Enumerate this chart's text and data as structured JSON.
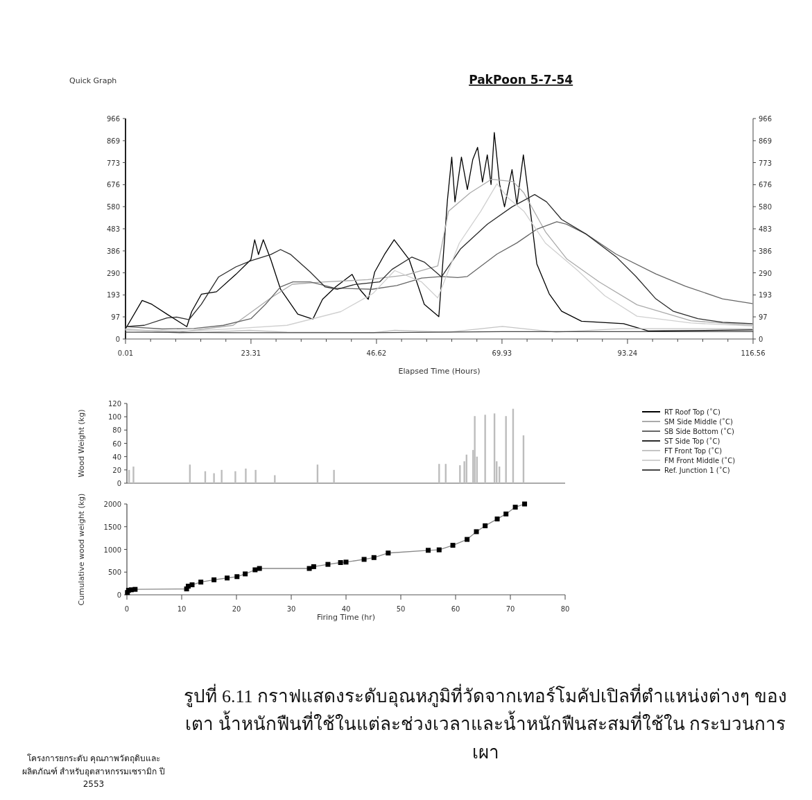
{
  "chart_data": [
    {
      "type": "line",
      "title": "PakPoon 5-7-54",
      "xlabel": "Elapsed Time (Hours)",
      "annotations": [
        "Quick Graph"
      ],
      "xlim": [
        0.01,
        116.56
      ],
      "xticks": [
        0.01,
        {
          "value": 4.67,
          "label": null
        },
        {
          "value": 9.33,
          "label": null
        },
        {
          "value": 13.99,
          "label": null
        },
        {
          "value": 18.65,
          "label": null
        },
        23.31,
        {
          "value": 27.97,
          "label": null
        },
        {
          "value": 32.63,
          "label": null
        },
        {
          "value": 37.29,
          "label": null
        },
        {
          "value": 41.96,
          "label": null
        },
        46.62,
        {
          "value": 51.28,
          "label": null
        },
        {
          "value": 55.94,
          "label": null
        },
        {
          "value": 60.6,
          "label": null
        },
        {
          "value": 65.27,
          "label": null
        },
        69.93,
        {
          "value": 74.59,
          "label": null
        },
        {
          "value": 79.25,
          "label": null
        },
        {
          "value": 83.91,
          "label": null
        },
        {
          "value": 88.58,
          "label": null
        },
        93.24,
        {
          "value": 97.9,
          "label": null
        },
        {
          "value": 102.56,
          "label": null
        },
        {
          "value": 107.22,
          "label": null
        },
        {
          "value": 111.89,
          "label": null
        },
        116.56
      ],
      "ylim": [
        0,
        966
      ],
      "yticks": [
        0,
        97,
        193,
        290,
        386,
        483,
        580,
        676,
        773,
        869,
        966
      ],
      "y2lim": [
        0,
        966
      ],
      "y2ticks": [
        0,
        97,
        193,
        290,
        386,
        483,
        580,
        676,
        773,
        869,
        966
      ],
      "legend": "bottom right",
      "line_style": "solid",
      "grid": false,
      "series": [
        {
          "name": "RT Roof Top (˚C)",
          "color": "#000000",
          "x": [
            0.01,
            3.1,
            4.9,
            7.7,
            11.4,
            12.3,
            14.1,
            16.9,
            20.5,
            23.3,
            24,
            24.7,
            25.6,
            27,
            28.8,
            32,
            34.8,
            36.6,
            39,
            42.1,
            43.5,
            45.1,
            46.3,
            48.1,
            49.9,
            52.7,
            55.5,
            58.2,
            59.8,
            60.6,
            61.2,
            62.4,
            63.5,
            64.5,
            65.4,
            66.3,
            67.2,
            67.9,
            68.5,
            69.5,
            70.4,
            71.8,
            72.7,
            73.9,
            75,
            76.4,
            78.7,
            81,
            84.7,
            92.5,
            97.1,
            116.4
          ],
          "values": [
            44,
            169,
            152,
            109,
            54,
            120,
            196,
            207,
            283,
            348,
            435,
            370,
            435,
            348,
            218,
            109,
            87,
            174,
            228,
            283,
            218,
            174,
            294,
            370,
            435,
            348,
            152,
            98,
            609,
            797,
            601,
            797,
            655,
            786,
            840,
            688,
            807,
            677,
            905,
            677,
            579,
            742,
            590,
            807,
            601,
            329,
            198,
            122,
            78,
            67,
            35,
            40
          ]
        },
        {
          "name": "SM Side Middle (˚C)",
          "color": "#aaaaaa",
          "x": [
            0.01,
            10,
            20,
            27,
            31,
            37,
            45,
            52,
            58,
            60,
            64,
            68,
            72,
            74,
            78,
            82,
            88,
            95,
            105,
            116.5
          ],
          "values": [
            40,
            30,
            60,
            180,
            240,
            250,
            260,
            280,
            320,
            560,
            640,
            700,
            690,
            640,
            470,
            350,
            250,
            150,
            80,
            60
          ]
        },
        {
          "name": "SB Side Bottom (˚C)",
          "color": "#666666",
          "x": [
            0.01,
            6.8,
            12.7,
            18.2,
            23.3,
            26,
            28.8,
            31.1,
            34.3,
            38.9,
            45.8,
            50.4,
            55,
            58.7,
            61.7,
            63.5,
            69,
            72.7,
            76.4,
            80.1,
            81.9,
            85.6,
            91.1,
            98.5,
            104,
            110.9,
            116.4
          ],
          "values": [
            54,
            44,
            46,
            60,
            89,
            152,
            228,
            250,
            250,
            223,
            218,
            234,
            267,
            274,
            269,
            274,
            372,
            421,
            481,
            514,
            503,
            459,
            372,
            285,
            231,
            176,
            155
          ]
        },
        {
          "name": "ST Side Top (˚C)",
          "color": "#2a2a2a",
          "x": [
            0.01,
            3.5,
            7.7,
            9.5,
            11.8,
            14.1,
            17.3,
            20.5,
            23.3,
            27,
            28.8,
            30.7,
            34.3,
            37.1,
            39.4,
            42.6,
            47.2,
            49.5,
            53.2,
            55.5,
            58.7,
            62.2,
            67.2,
            71.8,
            76,
            78.2,
            81,
            85.6,
            91.1,
            94.8,
            98.5,
            101.7,
            106.3,
            110.9,
            116.4
          ],
          "values": [
            54,
            60,
            92,
            96,
            85,
            152,
            272,
            316,
            343,
            370,
            392,
            370,
            294,
            228,
            218,
            239,
            250,
            305,
            359,
            337,
            272,
            394,
            503,
            579,
            633,
            601,
            524,
            459,
            361,
            274,
            176,
            122,
            89,
            73,
            67
          ]
        },
        {
          "name": "FT Front Top (˚C)",
          "color": "#c4c4c4",
          "x": [
            0.01,
            10,
            23,
            30,
            46,
            50,
            60,
            70,
            80,
            92,
            116.5
          ],
          "values": [
            45,
            25,
            38,
            30,
            28,
            38,
            30,
            55,
            30,
            45,
            45
          ]
        },
        {
          "name": "FM Front Middle (˚C)",
          "color": "#d0d0d0",
          "x": [
            0.01,
            12,
            20,
            30,
            40,
            46,
            50,
            55,
            58,
            62,
            66,
            69,
            71,
            74,
            78,
            84,
            89,
            95,
            105,
            116.5
          ],
          "values": [
            40,
            35,
            45,
            60,
            120,
            200,
            300,
            250,
            180,
            420,
            560,
            680,
            620,
            560,
            420,
            300,
            190,
            100,
            70,
            57
          ]
        },
        {
          "name": "Ref. Junction 1 (˚C)",
          "color": "#444444",
          "x": [
            0.01,
            20,
            46,
            70,
            116.5
          ],
          "values": [
            30,
            28,
            28,
            32,
            32
          ]
        }
      ]
    },
    {
      "type": "bar",
      "ylabel": "Wood Weight (kg)",
      "xlim": [
        0,
        80
      ],
      "ylim": [
        0,
        120
      ],
      "yticks": [
        0,
        20,
        40,
        60,
        80,
        100,
        120
      ],
      "tick_labels": "y",
      "grid": false,
      "series": [
        {
          "color": "#bdbdbd",
          "x": [
            0.4,
            1.2,
            11.5,
            14.3,
            15.9,
            17.3,
            19.8,
            21.7,
            23.5,
            27,
            34.8,
            37.8,
            57,
            58.2,
            60.8,
            61.6,
            62,
            63.2,
            63.5,
            63.9,
            65.4,
            67.1,
            67.5,
            68,
            69.2,
            70.5,
            72.4
          ],
          "values": [
            20,
            25,
            28,
            18,
            15,
            20,
            18,
            22,
            20,
            12,
            28,
            20,
            29,
            29,
            27,
            33,
            43,
            50,
            101,
            40,
            103,
            105,
            33,
            25,
            101,
            112,
            72
          ]
        }
      ]
    },
    {
      "type": "line",
      "xlabel": "Firing Time (hr)",
      "ylabel": "Cumulative wood weight (kg)",
      "xlim": [
        0,
        80
      ],
      "xticks": [
        0,
        10,
        20,
        30,
        40,
        50,
        60,
        70,
        80
      ],
      "ylim": [
        0,
        2000
      ],
      "yticks": [
        0,
        500,
        1000,
        1500,
        2000
      ],
      "marker": "square",
      "line_style": "solid",
      "grid": false,
      "annotations": [
        "รูปที่ 6.11 กราฟแสดงระดับอุณหภูมิที่วัดจากเทอร์โมคัปเปิลที่ตำแหน่งต่างๆ ของเตา น้ำหนักฟืนที่ใช้ในแต่ละช่วงเวลาและน้ำหนักฟืนสะสมที่ใช้ใน กระบวนการเผา",
        "โครงการยกระดับ คุณภาพวัตถุดิบและผลิตภัณฑ์ สำหรับอุตสาหกรรมเซรามิก ปี 2553"
      ],
      "series": [
        {
          "color": "#000000",
          "x": [
            0.1,
            0.3,
            0.8,
            1.5,
            10.9,
            11.2,
            11.9,
            13.5,
            15.9,
            18.3,
            20.1,
            21.6,
            23.4,
            24.2,
            33.3,
            34.1,
            36.7,
            39,
            40,
            43.3,
            45.1,
            47.7,
            55,
            57,
            59.5,
            62.1,
            63.8,
            65.4,
            67.6,
            69.2,
            70.9,
            72.6
          ],
          "values": [
            50,
            100,
            110,
            120,
            130,
            190,
            220,
            280,
            330,
            370,
            400,
            460,
            550,
            580,
            580,
            620,
            670,
            710,
            720,
            780,
            820,
            920,
            980,
            990,
            1090,
            1220,
            1390,
            1520,
            1670,
            1780,
            1930,
            2000
          ]
        }
      ]
    }
  ]
}
